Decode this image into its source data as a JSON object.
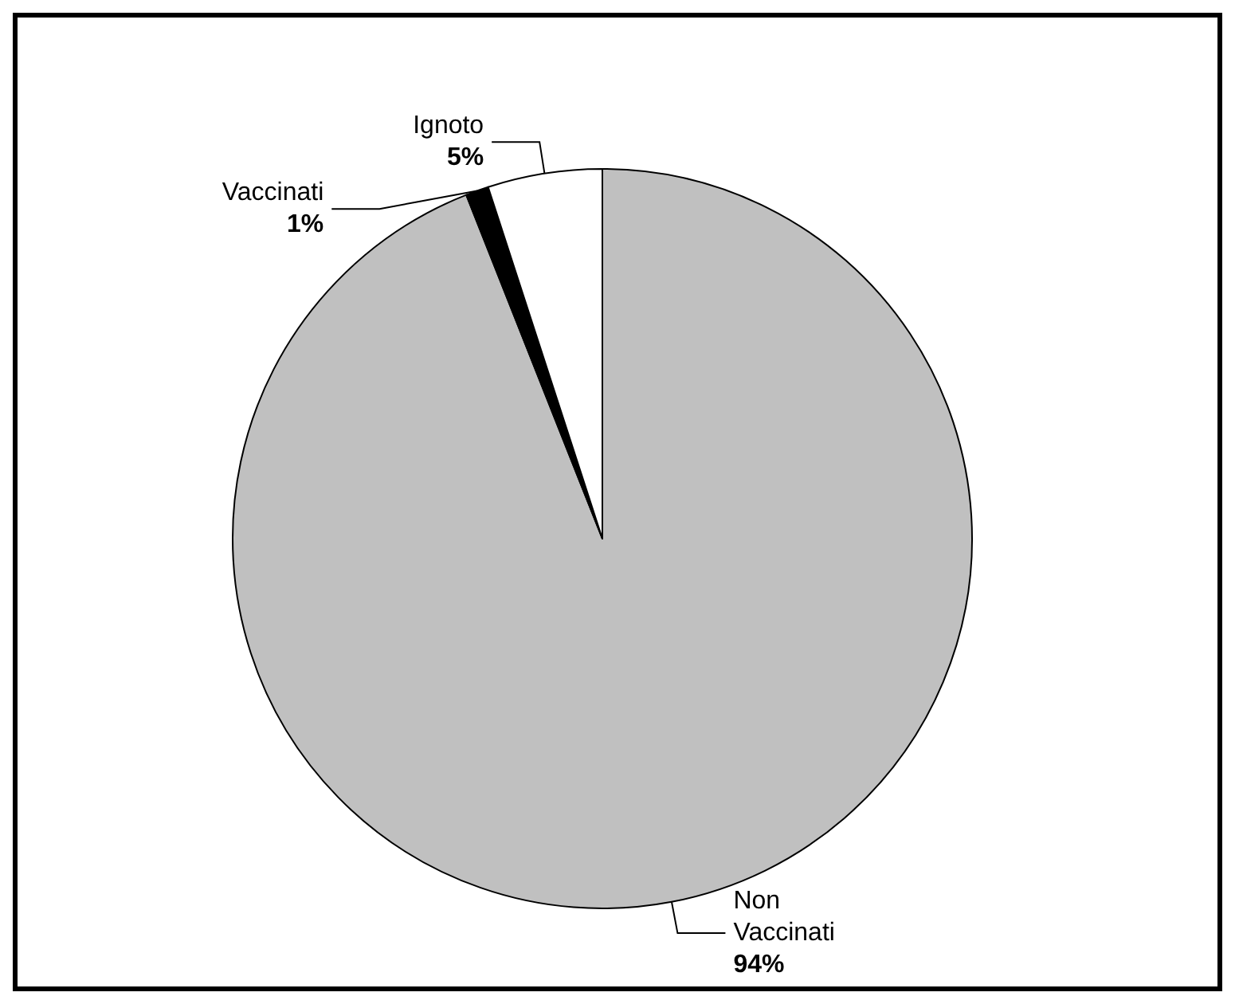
{
  "chart_data": {
    "type": "pie",
    "categories": [
      "Non Vaccinati",
      "Vaccinati",
      "Ignoto"
    ],
    "values": [
      94,
      1,
      5
    ],
    "colors": [
      "#c0c0c0",
      "#000000",
      "#ffffff"
    ],
    "value_labels": [
      "94%",
      "1%",
      "5%"
    ]
  }
}
